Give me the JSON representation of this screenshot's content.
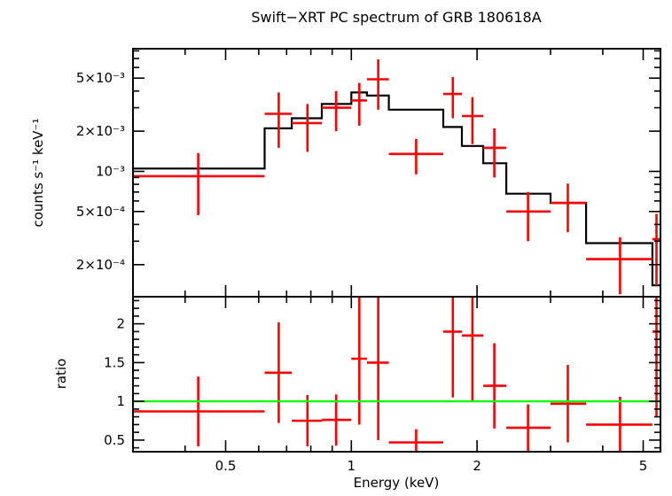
{
  "chart_data": {
    "type": "scatter",
    "title": "Swift−XRT PC spectrum of GRB 180618A",
    "xlabel": "Energy (keV)",
    "x_scale": "log",
    "xlim": [
      0.3,
      5.5
    ],
    "x_ticks": [
      {
        "value": 0.5,
        "label": "0.5"
      },
      {
        "value": 1,
        "label": "1"
      },
      {
        "value": 2,
        "label": "2"
      },
      {
        "value": 5,
        "label": "5"
      }
    ],
    "x_minor_ticks": [
      0.4,
      0.6,
      0.7,
      0.8,
      0.9,
      3,
      4
    ],
    "colors": {
      "data": "#ff0000",
      "model": "#000000",
      "reference": "#00ff00",
      "axis": "#000000",
      "background": "#ffffff"
    },
    "panels": [
      {
        "name": "spectrum",
        "ylabel": "counts s⁻¹ keV⁻¹",
        "y_scale": "log",
        "ylim": [
          0.000115,
          0.0083
        ],
        "y_ticks": [
          {
            "value": 0.005,
            "label": "5×10⁻³"
          },
          {
            "value": 0.002,
            "label": "2×10⁻³"
          },
          {
            "value": 0.001,
            "label": "10⁻³"
          },
          {
            "value": 0.0005,
            "label": "5×10⁻⁴"
          },
          {
            "value": 0.0002,
            "label": "2×10⁻⁴"
          }
        ],
        "y_minor_ticks": [
          0.0003,
          0.0004,
          0.0006,
          0.0007,
          0.0008,
          0.0009,
          0.003,
          0.004,
          0.006,
          0.007,
          0.008
        ],
        "points": [
          {
            "x": 0.43,
            "x_lo": 0.3,
            "x_hi": 0.62,
            "y": 0.00092,
            "y_err": 0.00045
          },
          {
            "x": 0.67,
            "x_lo": 0.62,
            "x_hi": 0.72,
            "y": 0.0027,
            "y_err": 0.0012
          },
          {
            "x": 0.785,
            "x_lo": 0.72,
            "x_hi": 0.85,
            "y": 0.0023,
            "y_err": 0.0009
          },
          {
            "x": 0.92,
            "x_lo": 0.85,
            "x_hi": 1.0,
            "y": 0.003,
            "y_err": 0.001
          },
          {
            "x": 1.045,
            "x_lo": 1.0,
            "x_hi": 1.09,
            "y": 0.0034,
            "y_err": 0.0012
          },
          {
            "x": 1.16,
            "x_lo": 1.09,
            "x_hi": 1.23,
            "y": 0.0049,
            "y_err": 0.002
          },
          {
            "x": 1.43,
            "x_lo": 1.23,
            "x_hi": 1.66,
            "y": 0.00135,
            "y_err": 0.0004
          },
          {
            "x": 1.75,
            "x_lo": 1.66,
            "x_hi": 1.84,
            "y": 0.0038,
            "y_err": 0.0013
          },
          {
            "x": 1.95,
            "x_lo": 1.84,
            "x_hi": 2.07,
            "y": 0.0026,
            "y_err": 0.001
          },
          {
            "x": 2.2,
            "x_lo": 2.07,
            "x_hi": 2.35,
            "y": 0.0015,
            "y_err": 0.0006
          },
          {
            "x": 2.65,
            "x_lo": 2.35,
            "x_hi": 3.0,
            "y": 0.0005,
            "y_err": 0.0002
          },
          {
            "x": 3.3,
            "x_lo": 3.0,
            "x_hi": 3.65,
            "y": 0.00058,
            "y_err": 0.00023
          },
          {
            "x": 4.4,
            "x_lo": 3.65,
            "x_hi": 5.26,
            "y": 0.00022,
            "y_err": 0.0001
          },
          {
            "x": 5.38,
            "x_lo": 5.26,
            "x_hi": 5.5,
            "y": 0.00031,
            "y_err": 0.00017
          }
        ],
        "model": [
          {
            "x_lo": 0.3,
            "x_hi": 0.62,
            "y": 0.00105
          },
          {
            "x_lo": 0.62,
            "x_hi": 0.72,
            "y": 0.0021
          },
          {
            "x_lo": 0.72,
            "x_hi": 0.85,
            "y": 0.0025
          },
          {
            "x_lo": 0.85,
            "x_hi": 1.0,
            "y": 0.0032
          },
          {
            "x_lo": 1.0,
            "x_hi": 1.09,
            "y": 0.0039
          },
          {
            "x_lo": 1.09,
            "x_hi": 1.23,
            "y": 0.0037
          },
          {
            "x_lo": 1.23,
            "x_hi": 1.66,
            "y": 0.0029
          },
          {
            "x_lo": 1.66,
            "x_hi": 1.84,
            "y": 0.00215
          },
          {
            "x_lo": 1.84,
            "x_hi": 2.07,
            "y": 0.00155
          },
          {
            "x_lo": 2.07,
            "x_hi": 2.35,
            "y": 0.00115
          },
          {
            "x_lo": 2.35,
            "x_hi": 3.0,
            "y": 0.00068
          },
          {
            "x_lo": 3.0,
            "x_hi": 3.65,
            "y": 0.00058
          },
          {
            "x_lo": 3.65,
            "x_hi": 5.26,
            "y": 0.00029
          },
          {
            "x_lo": 5.26,
            "x_hi": 5.5,
            "y": 0.00014
          }
        ]
      },
      {
        "name": "ratio",
        "ylabel": "ratio",
        "y_scale": "linear",
        "ylim": [
          0.35,
          2.35
        ],
        "y_ticks": [
          {
            "value": 2,
            "label": "2"
          },
          {
            "value": 1.5,
            "label": "1.5"
          },
          {
            "value": 1,
            "label": "1"
          },
          {
            "value": 0.5,
            "label": "0.5"
          }
        ],
        "y_minor_step": 0.1,
        "reference_line": 1.0,
        "points": [
          {
            "x": 0.43,
            "x_lo": 0.3,
            "x_hi": 0.62,
            "y": 0.87,
            "y_err": 0.45
          },
          {
            "x": 0.67,
            "x_lo": 0.62,
            "x_hi": 0.72,
            "y": 1.37,
            "y_err": 0.65
          },
          {
            "x": 0.785,
            "x_lo": 0.72,
            "x_hi": 0.85,
            "y": 0.75,
            "y_err": 0.33
          },
          {
            "x": 0.92,
            "x_lo": 0.85,
            "x_hi": 1.0,
            "y": 0.76,
            "y_err": 0.33
          },
          {
            "x": 1.045,
            "x_lo": 1.0,
            "x_hi": 1.09,
            "y": 1.55,
            "y_err": 0.85
          },
          {
            "x": 1.16,
            "x_lo": 1.09,
            "x_hi": 1.23,
            "y": 1.5,
            "y_err": 1.0
          },
          {
            "x": 1.43,
            "x_lo": 1.23,
            "x_hi": 1.66,
            "y": 0.47,
            "y_err": 0.17
          },
          {
            "x": 1.75,
            "x_lo": 1.66,
            "x_hi": 1.84,
            "y": 1.9,
            "y_err": 0.85
          },
          {
            "x": 1.95,
            "x_lo": 1.84,
            "x_hi": 2.07,
            "y": 1.85,
            "y_err": 0.85
          },
          {
            "x": 2.2,
            "x_lo": 2.07,
            "x_hi": 2.35,
            "y": 1.2,
            "y_err": 0.55
          },
          {
            "x": 2.65,
            "x_lo": 2.35,
            "x_hi": 3.0,
            "y": 0.66,
            "y_err": 0.3
          },
          {
            "x": 3.3,
            "x_lo": 3.0,
            "x_hi": 3.65,
            "y": 0.97,
            "y_err": 0.5
          },
          {
            "x": 4.4,
            "x_lo": 3.65,
            "x_hi": 5.26,
            "y": 0.7,
            "y_err": 0.36
          },
          {
            "x": 5.38,
            "x_lo": 5.26,
            "x_hi": 5.5,
            "y": 1.9,
            "y_err": 1.1
          }
        ]
      }
    ]
  }
}
